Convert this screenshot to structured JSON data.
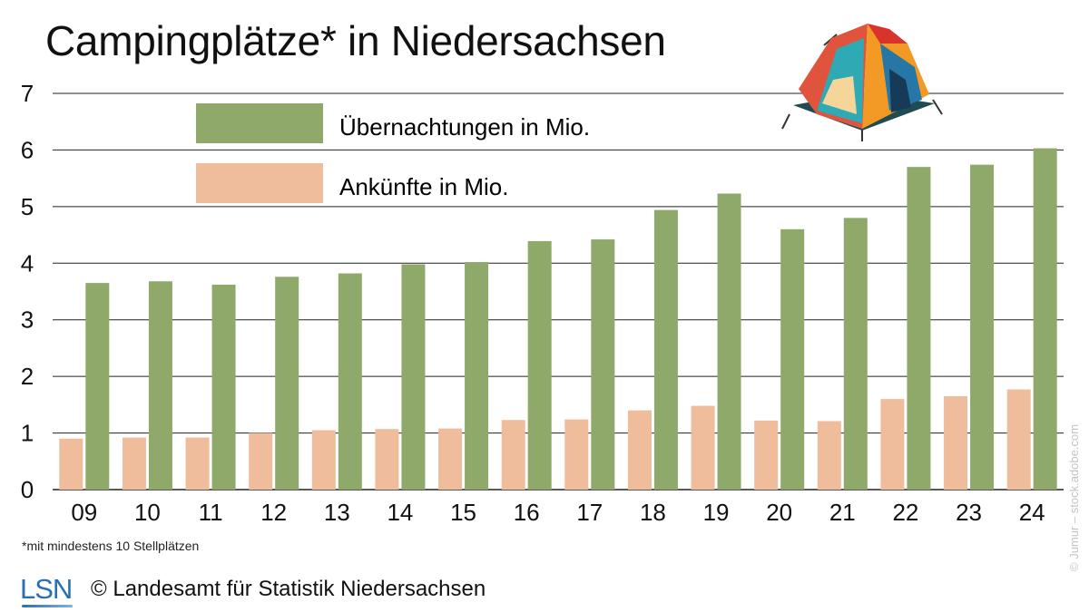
{
  "title": "Campingplätze* in Niedersachsen",
  "footnote": "*mit mindestens 10 Stellplätzen",
  "footer": {
    "logo": "LSN",
    "copyright": "© Landesamt für Statistik Niedersachsen"
  },
  "photo_credit": "© Jumur – stock.adobe.com",
  "colors": {
    "uebernachtungen": "#8fa96a",
    "ankuenfte": "#efbd9b",
    "gridline": "#222222"
  },
  "illustration": "tent-icon",
  "chart_data": {
    "type": "bar",
    "title": "Campingplätze* in Niedersachsen",
    "xlabel": "",
    "ylabel": "",
    "ylim": [
      0,
      7
    ],
    "yticks": [
      0,
      1,
      2,
      3,
      4,
      5,
      6,
      7
    ],
    "grid": true,
    "legend_position": "top-left",
    "categories": [
      "09",
      "10",
      "11",
      "12",
      "13",
      "14",
      "15",
      "16",
      "17",
      "18",
      "19",
      "20",
      "21",
      "22",
      "23",
      "24"
    ],
    "series": [
      {
        "name": "Ankünfte in Mio.",
        "color": "#efbd9b",
        "values": [
          0.9,
          0.92,
          0.92,
          1.0,
          1.05,
          1.07,
          1.08,
          1.23,
          1.24,
          1.4,
          1.48,
          1.22,
          1.21,
          1.6,
          1.65,
          1.77
        ]
      },
      {
        "name": "Übernachtungen in Mio.",
        "color": "#8fa96a",
        "values": [
          3.65,
          3.68,
          3.62,
          3.76,
          3.82,
          3.98,
          4.02,
          4.39,
          4.42,
          4.94,
          5.23,
          4.6,
          4.8,
          5.7,
          5.74,
          6.03
        ]
      }
    ]
  }
}
